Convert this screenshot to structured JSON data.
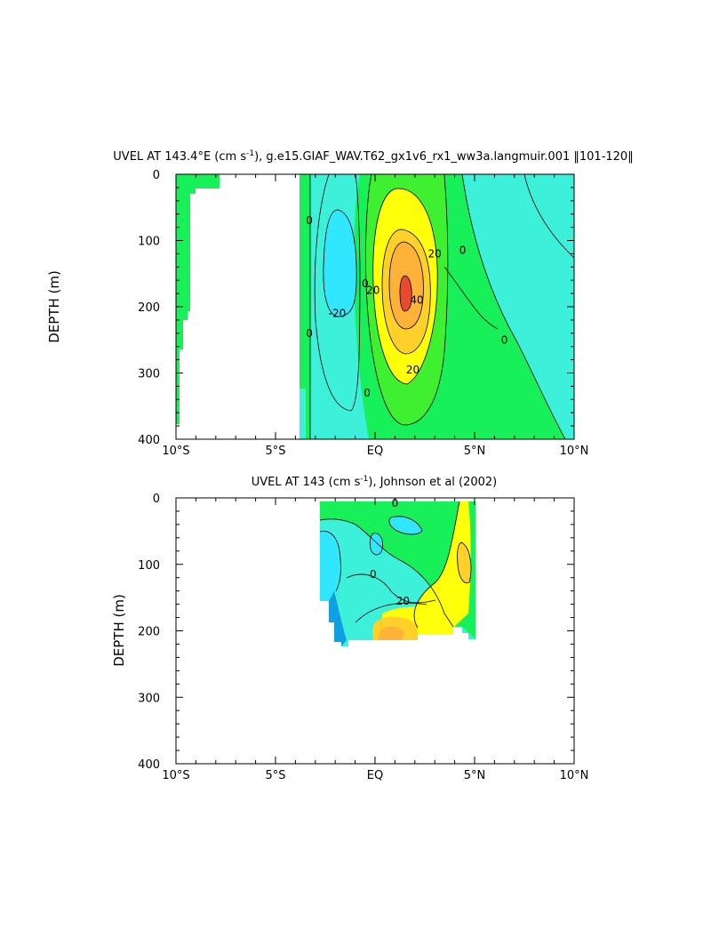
{
  "chart_data": [
    {
      "type": "contour",
      "title_pre": "UVEL AT 143.4°E (cm s",
      "title_sup": "-1",
      "title_post": "), g.e15.GIAF_WAV.T62_gx1v6_rx1_ww3a.langmuir.001 ‖101-120‖",
      "ylabel": "DEPTH (m)",
      "xlim": [
        -10,
        10
      ],
      "ylim": [
        400,
        0
      ],
      "x_ticks": [
        -10,
        -5,
        0,
        5,
        10
      ],
      "x_tick_labels": [
        "10°S",
        "5°S",
        "EQ",
        "5°N",
        "10°N"
      ],
      "y_ticks": [
        0,
        100,
        200,
        300,
        400
      ],
      "y_tick_labels": [
        "0",
        "100",
        "200",
        "300",
        "400"
      ],
      "contour_levels": [
        -40,
        -20,
        -10,
        0,
        10,
        20,
        30,
        40
      ],
      "contour_labels": [
        {
          "text": "0",
          "x": -3.3,
          "y": 70
        },
        {
          "text": "-20",
          "x": -1.9,
          "y": 210
        },
        {
          "text": "0",
          "x": -3.3,
          "y": 240
        },
        {
          "text": "0",
          "x": -0.5,
          "y": 165
        },
        {
          "text": "20",
          "x": -0.1,
          "y": 175
        },
        {
          "text": "40",
          "x": 2.1,
          "y": 190
        },
        {
          "text": "20",
          "x": 3.0,
          "y": 120
        },
        {
          "text": "20",
          "x": 1.9,
          "y": 295
        },
        {
          "text": "0",
          "x": -0.4,
          "y": 330
        },
        {
          "text": "0",
          "x": 4.4,
          "y": 115
        },
        {
          "text": "0",
          "x": 6.5,
          "y": 250
        }
      ],
      "fields": [
        {
          "name": "westward core",
          "value": -25,
          "x": [
            -3.4,
            -1.2
          ],
          "depth": [
            60,
            310
          ],
          "color": "#31e7ff"
        },
        {
          "name": "EUC core",
          "value": 45,
          "x": [
            1.0,
            2.0
          ],
          "depth": [
            135,
            230
          ],
          "color": "#e84a2e"
        }
      ]
    },
    {
      "type": "contour",
      "title_pre": "UVEL AT 143 (cm s",
      "title_sup": "-1",
      "title_post": "), Johnson et al (2002)",
      "ylabel": "DEPTH (m)",
      "xlim": [
        -10,
        10
      ],
      "ylim": [
        400,
        0
      ],
      "x_ticks": [
        -10,
        -5,
        0,
        5,
        10
      ],
      "x_tick_labels": [
        "10°S",
        "5°S",
        "EQ",
        "5°N",
        "10°N"
      ],
      "y_ticks": [
        0,
        100,
        200,
        300,
        400
      ],
      "y_tick_labels": [
        "0",
        "100",
        "200",
        "300",
        "400"
      ],
      "data_extent": {
        "x": [
          -2.8,
          5.0
        ],
        "depth": [
          10,
          215
        ]
      },
      "contour_labels": [
        {
          "text": "0",
          "x": 1.0,
          "y": 8
        },
        {
          "text": "0",
          "x": -0.1,
          "y": 115
        },
        {
          "text": "20",
          "x": 1.4,
          "y": 155
        }
      ]
    }
  ],
  "colors": {
    "dark_blue": "#0ea0e0",
    "blue": "#31e7ff",
    "cyan": "#3cf0d9",
    "green": "#18f05a",
    "light_green": "#3ef030",
    "yellow": "#ffff0a",
    "gold": "#ffd02a",
    "orange": "#ffb238",
    "red_orange": "#e84a2e",
    "contour_line": "#000000"
  }
}
